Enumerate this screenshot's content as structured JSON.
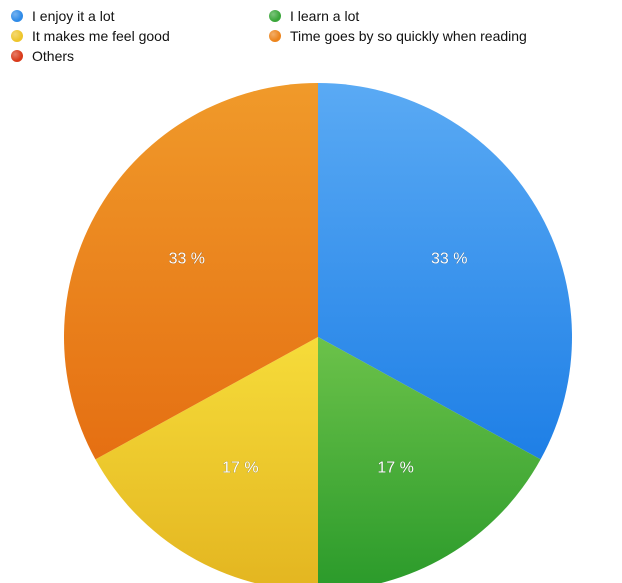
{
  "chart_data": {
    "type": "pie",
    "title": "",
    "legend_placement": "top-left",
    "start_angle": "12 o'clock, clockwise",
    "slices": [
      {
        "name": "I enjoy it a lot",
        "value": 33,
        "label": "33 %",
        "color": "#1e7fe6",
        "color_light": "#5aaaf4"
      },
      {
        "name": "I learn a lot",
        "value": 17,
        "label": "17 %",
        "color": "#2a9a2a",
        "color_light": "#6cc24a"
      },
      {
        "name": "It makes me feel good",
        "value": 17,
        "label": "17 %",
        "color": "#e3b520",
        "color_light": "#f6dc3a"
      },
      {
        "name": "Time goes by so quickly when reading",
        "value": 33,
        "label": "33 %",
        "color": "#e56f12",
        "color_light": "#f09a2a"
      },
      {
        "name": "Others",
        "value": 0,
        "label": "",
        "color": "#d93a1a",
        "color_light": "#e65a36"
      }
    ],
    "legend": [
      {
        "label": "I enjoy it a lot",
        "color": "#2f8be8"
      },
      {
        "label": "I learn a lot",
        "color": "#3aa63a"
      },
      {
        "label": "It makes me feel good",
        "color": "#eec52c"
      },
      {
        "label": "Time goes by so quickly when reading",
        "color": "#ec841c"
      },
      {
        "label": "Others",
        "color": "#d93a1a"
      }
    ]
  }
}
